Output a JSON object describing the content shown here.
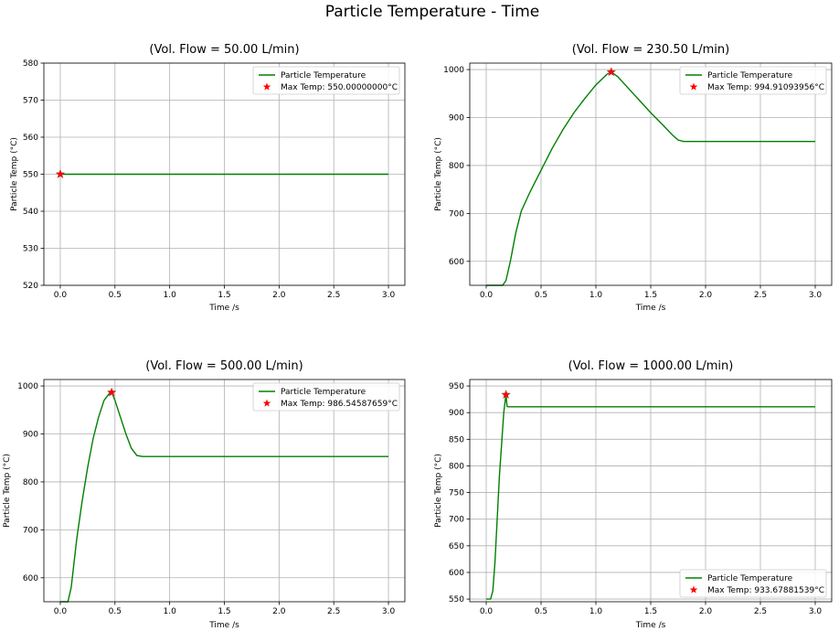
{
  "figure": {
    "title": "Particle Temperature - Time"
  },
  "colors": {
    "line": "#008000",
    "marker": "#ff0000",
    "grid": "#b0b0b0"
  },
  "chart_data": [
    {
      "type": "line",
      "title": "(Vol. Flow = 50.00 L/min)",
      "xlabel": "Time /s",
      "ylabel": "Particle Temp (°C)",
      "xlim": [
        0,
        3.0
      ],
      "ylim": [
        520,
        580
      ],
      "xticks": [
        "0.0",
        "0.5",
        "1.0",
        "1.5",
        "2.0",
        "2.5",
        "3.0"
      ],
      "yticks": [
        "520",
        "530",
        "540",
        "550",
        "560",
        "570",
        "580"
      ],
      "grid": true,
      "legend_position": "top-right",
      "series": [
        {
          "name": "Particle Temperature",
          "x": [
            0,
            3.0
          ],
          "y": [
            550,
            550
          ]
        }
      ],
      "max_point": {
        "label": "Max Temp: 550.00000000°C",
        "x": 0.0,
        "y": 550.0
      }
    },
    {
      "type": "line",
      "title": "(Vol. Flow = 230.50 L/min)",
      "xlabel": "Time /s",
      "ylabel": "Particle Temp (°C)",
      "xlim": [
        0,
        3.0
      ],
      "ylim": [
        550,
        1000
      ],
      "xticks": [
        "0.0",
        "0.5",
        "1.0",
        "1.5",
        "2.0",
        "2.5",
        "3.0"
      ],
      "yticks": [
        "600",
        "700",
        "800",
        "900",
        "1000"
      ],
      "grid": true,
      "legend_position": "top-right",
      "series": [
        {
          "name": "Particle Temperature",
          "x": [
            0,
            0.15,
            0.18,
            0.22,
            0.27,
            0.32,
            0.4,
            0.5,
            0.6,
            0.7,
            0.8,
            0.9,
            1.0,
            1.1,
            1.14,
            1.2,
            1.3,
            1.4,
            1.5,
            1.6,
            1.7,
            1.75,
            1.8,
            1.9,
            2.0,
            2.5,
            3.0
          ],
          "y": [
            550,
            550,
            560,
            600,
            660,
            705,
            745,
            790,
            835,
            875,
            910,
            940,
            968,
            990,
            995,
            985,
            960,
            935,
            910,
            887,
            863,
            853,
            850,
            850,
            850,
            850,
            850
          ]
        }
      ],
      "max_point": {
        "label": "Max Temp: 994.91093956°C",
        "x": 1.14,
        "y": 994.91
      }
    },
    {
      "type": "line",
      "title": "(Vol. Flow = 500.00 L/min)",
      "xlabel": "Time /s",
      "ylabel": "Particle Temp (°C)",
      "xlim": [
        0,
        3.0
      ],
      "ylim": [
        550,
        1000
      ],
      "xticks": [
        "0.0",
        "0.5",
        "1.0",
        "1.5",
        "2.0",
        "2.5",
        "3.0"
      ],
      "yticks": [
        "600",
        "700",
        "800",
        "900",
        "1000"
      ],
      "grid": true,
      "legend_position": "top-right",
      "series": [
        {
          "name": "Particle Temperature",
          "x": [
            0,
            0.07,
            0.1,
            0.15,
            0.2,
            0.25,
            0.3,
            0.35,
            0.4,
            0.45,
            0.47,
            0.5,
            0.55,
            0.6,
            0.65,
            0.7,
            0.75,
            1.0,
            2.0,
            3.0
          ],
          "y": [
            550,
            550,
            580,
            680,
            760,
            830,
            890,
            935,
            970,
            985,
            987,
            970,
            935,
            900,
            870,
            855,
            853,
            853,
            853,
            853
          ]
        }
      ],
      "max_point": {
        "label": "Max Temp: 986.54587659°C",
        "x": 0.47,
        "y": 986.55
      }
    },
    {
      "type": "line",
      "title": "(Vol. Flow = 1000.00 L/min)",
      "xlabel": "Time /s",
      "ylabel": "Particle Temp (°C)",
      "xlim": [
        0,
        3.0
      ],
      "ylim": [
        545,
        950
      ],
      "xticks": [
        "0.0",
        "0.5",
        "1.0",
        "1.5",
        "2.0",
        "2.5",
        "3.0"
      ],
      "yticks": [
        "550",
        "600",
        "650",
        "700",
        "750",
        "800",
        "850",
        "900",
        "950"
      ],
      "grid": true,
      "legend_position": "bottom-right",
      "series": [
        {
          "name": "Particle Temperature",
          "x": [
            0,
            0.04,
            0.06,
            0.08,
            0.1,
            0.12,
            0.14,
            0.16,
            0.18,
            0.19,
            0.2,
            0.5,
            1.0,
            2.0,
            3.0
          ],
          "y": [
            550,
            550,
            565,
            620,
            700,
            780,
            840,
            900,
            934,
            912,
            911,
            911,
            911,
            911,
            911
          ]
        }
      ],
      "max_point": {
        "label": "Max Temp: 933.67881539°C",
        "x": 0.18,
        "y": 933.68
      }
    }
  ]
}
